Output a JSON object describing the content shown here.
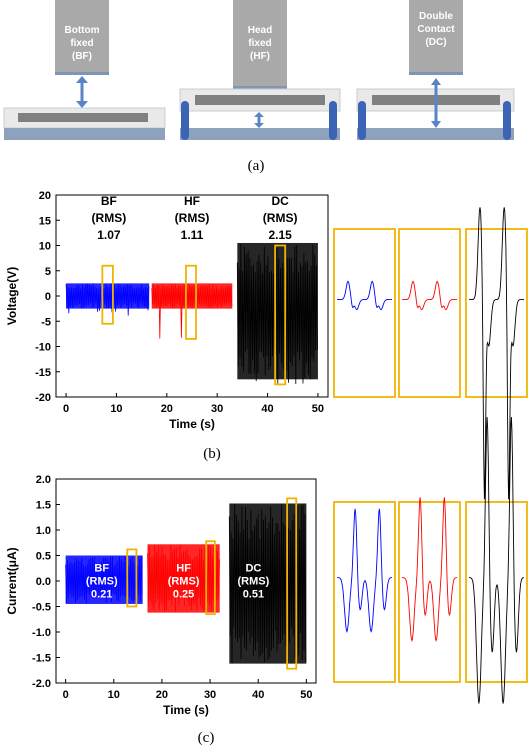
{
  "diagram": {
    "caption": "(a)",
    "panels": [
      {
        "label_lines": [
          "Bottom",
          "fixed",
          "(BF)"
        ]
      },
      {
        "label_lines": [
          "Head",
          "fixed",
          "(HF)"
        ]
      },
      {
        "label_lines": [
          "Double",
          "Contact",
          "(DC)"
        ]
      }
    ]
  },
  "colors": {
    "BF": "#0000ff",
    "HF": "#ff0000",
    "DC": "#000000",
    "highlight": "#f0b400",
    "cylinder": "#a8a8a8",
    "base": "#8ea2bd",
    "arrow": "#5b83c7",
    "post": "#3b64b4"
  },
  "chart_data": [
    {
      "type": "line",
      "caption": "(b)",
      "xlabel": "Time (s)",
      "ylabel": "Voltage(V)",
      "xlim": [
        -2,
        52
      ],
      "ylim": [
        -20,
        20
      ],
      "xticks": [
        0,
        10,
        20,
        30,
        40,
        50
      ],
      "yticks": [
        -20,
        -15,
        -10,
        -5,
        0,
        5,
        10,
        15,
        20
      ],
      "series": [
        {
          "name": "BF",
          "x_range": [
            0,
            16.5
          ],
          "upper": 2.5,
          "lower": -2.5,
          "spike": -4
        },
        {
          "name": "HF",
          "x_range": [
            17,
            33
          ],
          "upper": 2.5,
          "lower": -2.5,
          "spike": -9
        },
        {
          "name": "DC",
          "x_range": [
            34,
            50
          ],
          "upper": 10.5,
          "lower": -16.5,
          "spike": -18
        }
      ],
      "annotations": [
        {
          "lines": [
            "BF",
            "(RMS)",
            "1.07"
          ],
          "x": 8.5,
          "y": 18
        },
        {
          "lines": [
            "HF",
            "(RMS)",
            "1.11"
          ],
          "x": 25,
          "y": 18
        },
        {
          "lines": [
            "DC",
            "(RMS)",
            "2.15"
          ],
          "x": 42.5,
          "y": 18
        }
      ],
      "highlight_boxes": [
        {
          "x": [
            7.2,
            9.3
          ],
          "y": [
            -5.5,
            6
          ]
        },
        {
          "x": [
            23.8,
            25.8
          ],
          "y": [
            -8.5,
            6
          ]
        },
        {
          "x": [
            41.5,
            43.5
          ],
          "y": [
            -17.5,
            10
          ]
        }
      ]
    },
    {
      "type": "line",
      "caption": "(c)",
      "xlabel": "Time (s)",
      "ylabel": "Current(μA)",
      "xlim": [
        -2,
        52
      ],
      "ylim": [
        -2.0,
        2.0
      ],
      "xticks": [
        0,
        10,
        20,
        30,
        40,
        50
      ],
      "yticks": [
        "-2.0",
        "-1.5",
        "-1.0",
        "-0.5",
        "0.0",
        "0.5",
        "1.0",
        "1.5",
        "2.0"
      ],
      "series": [
        {
          "name": "BF",
          "x_range": [
            0,
            16
          ],
          "upper": 0.5,
          "lower": -0.45
        },
        {
          "name": "HF",
          "x_range": [
            17,
            32
          ],
          "upper": 0.72,
          "lower": -0.62
        },
        {
          "name": "DC",
          "x_range": [
            34,
            50
          ],
          "upper": 1.52,
          "lower": -1.62
        }
      ],
      "annotations": [
        {
          "lines": [
            "BF",
            "(RMS)",
            "0.21"
          ],
          "x": 7.5,
          "y": 0.15
        },
        {
          "lines": [
            "HF",
            "(RMS)",
            "0.25"
          ],
          "x": 24.5,
          "y": 0.15
        },
        {
          "lines": [
            "DC",
            "(RMS)",
            "0.51"
          ],
          "x": 39,
          "y": 0.15
        }
      ],
      "highlight_boxes": [
        {
          "x": [
            12.8,
            14.7
          ],
          "y": [
            -0.5,
            0.62
          ]
        },
        {
          "x": [
            29.2,
            31
          ],
          "y": [
            -0.65,
            0.78
          ]
        },
        {
          "x": [
            46,
            47.9
          ],
          "y": [
            -1.72,
            1.62
          ]
        }
      ]
    }
  ]
}
